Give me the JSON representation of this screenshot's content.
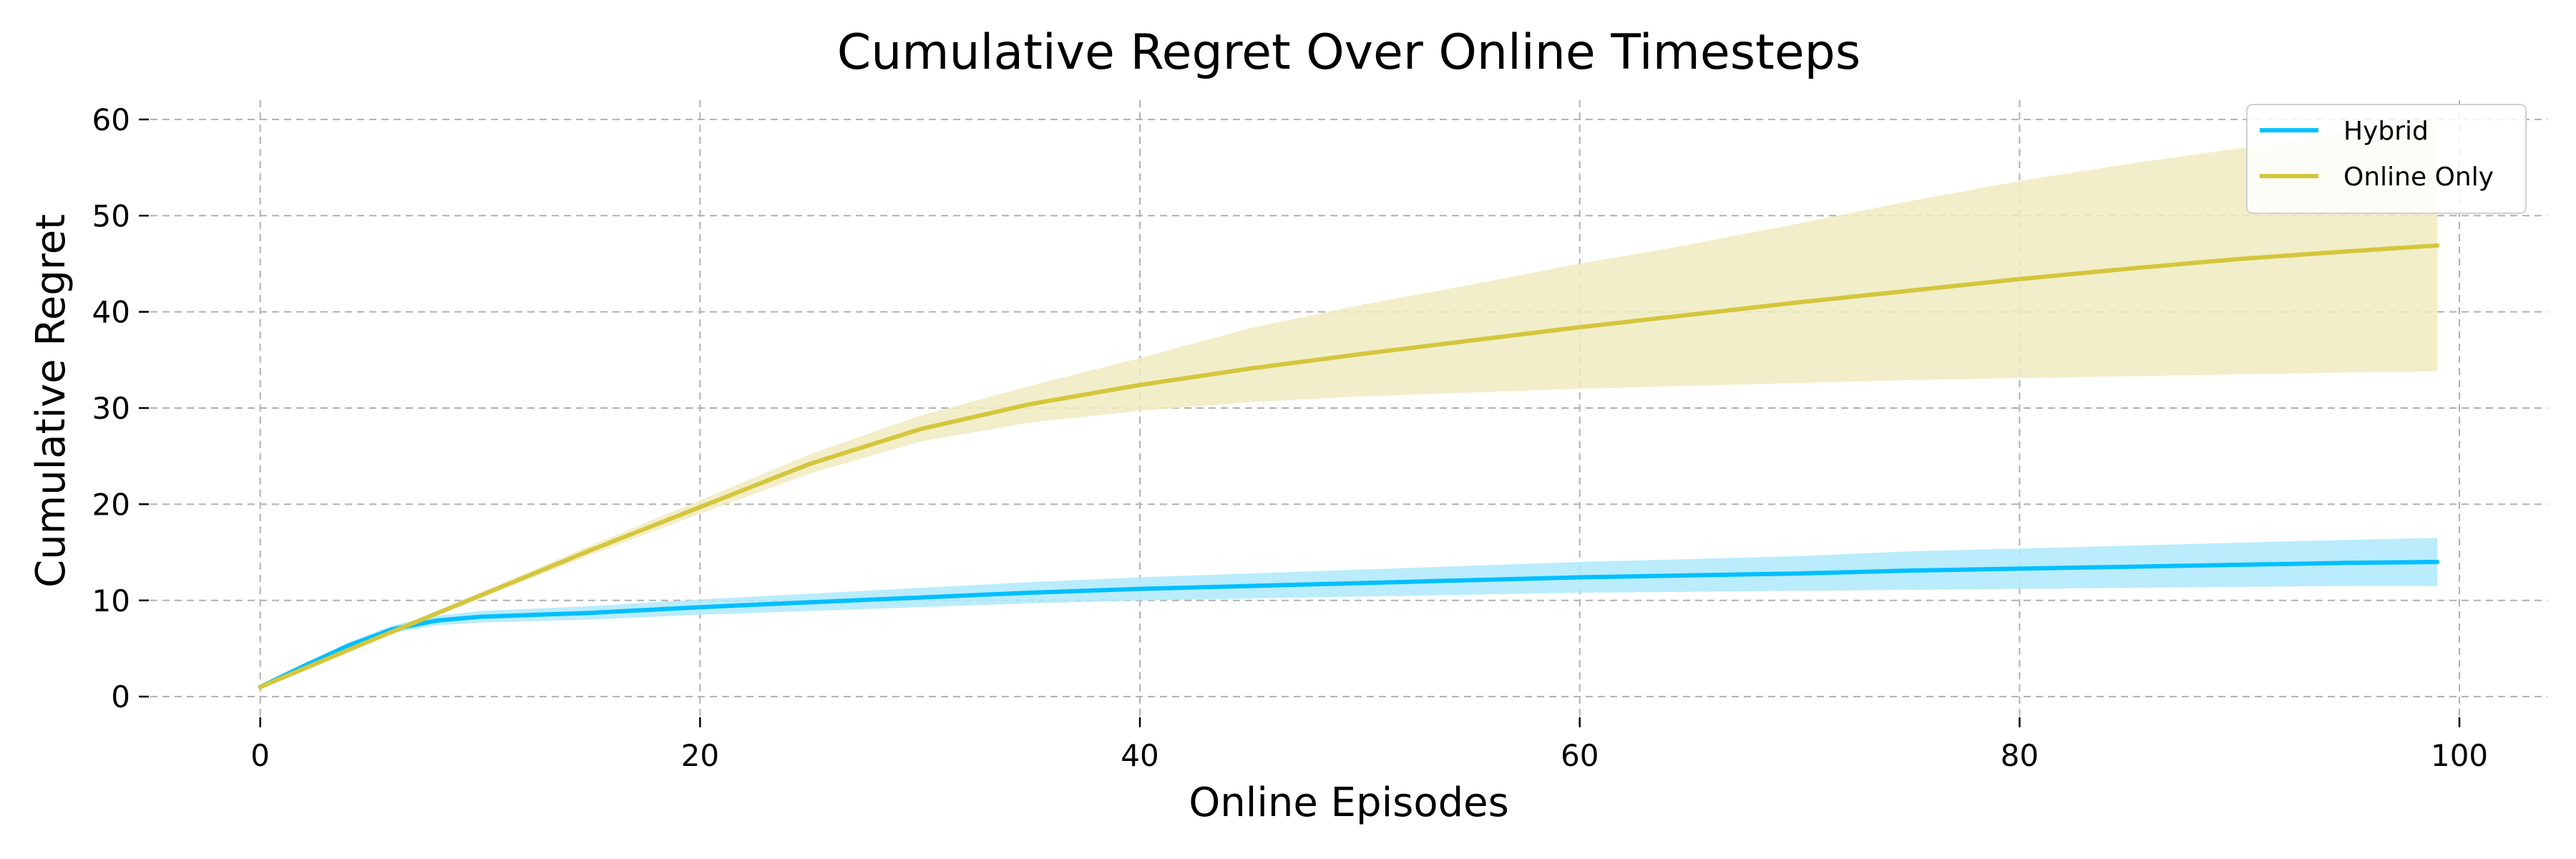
{
  "chart_data": {
    "type": "line",
    "title": "Cumulative Regret Over Online Timesteps",
    "xlabel": "Online Episodes",
    "ylabel": "Cumulative Regret",
    "xlim": [
      -5,
      104
    ],
    "ylim": [
      -2,
      62
    ],
    "xticks": [
      0,
      20,
      40,
      60,
      80,
      100
    ],
    "yticks": [
      0,
      10,
      20,
      30,
      40,
      50,
      60
    ],
    "grid": true,
    "legend_position": "top-right",
    "series": [
      {
        "name": "Hybrid",
        "color": "#00bfff",
        "band_color": "#aee9fb",
        "x": [
          0,
          2,
          4,
          6,
          8,
          10,
          15,
          20,
          25,
          30,
          35,
          40,
          45,
          50,
          55,
          60,
          65,
          70,
          75,
          80,
          85,
          90,
          95,
          99
        ],
        "y": [
          1.0,
          3.2,
          5.3,
          7.0,
          7.9,
          8.3,
          8.7,
          9.3,
          9.8,
          10.3,
          10.8,
          11.2,
          11.5,
          11.8,
          12.1,
          12.4,
          12.6,
          12.8,
          13.1,
          13.3,
          13.5,
          13.7,
          13.9,
          14.0
        ],
        "lower": [
          1.0,
          3.0,
          5.0,
          6.6,
          7.4,
          7.7,
          8.0,
          8.5,
          8.9,
          9.3,
          9.7,
          10.0,
          10.2,
          10.4,
          10.6,
          10.8,
          10.9,
          11.0,
          11.1,
          11.2,
          11.3,
          11.4,
          11.5,
          11.5
        ],
        "upper": [
          1.0,
          3.4,
          5.6,
          7.4,
          8.4,
          8.9,
          9.4,
          10.1,
          10.7,
          11.3,
          11.9,
          12.4,
          12.8,
          13.2,
          13.6,
          14.0,
          14.3,
          14.6,
          15.1,
          15.4,
          15.7,
          16.0,
          16.3,
          16.5
        ]
      },
      {
        "name": "Online Only",
        "color": "#d4c63c",
        "band_color": "#f0ebbf",
        "x": [
          0,
          5,
          10,
          15,
          20,
          25,
          30,
          35,
          40,
          45,
          50,
          55,
          60,
          65,
          70,
          75,
          80,
          85,
          90,
          95,
          99
        ],
        "y": [
          1.0,
          5.8,
          10.5,
          15.2,
          19.7,
          24.2,
          27.8,
          30.4,
          32.4,
          34.1,
          35.6,
          37.0,
          38.4,
          39.7,
          41.0,
          42.2,
          43.4,
          44.5,
          45.5,
          46.3,
          46.9
        ],
        "lower": [
          1.0,
          5.6,
          10.2,
          14.7,
          19.0,
          23.2,
          26.5,
          28.5,
          29.7,
          30.6,
          31.2,
          31.6,
          32.0,
          32.3,
          32.6,
          32.9,
          33.1,
          33.3,
          33.5,
          33.7,
          33.8
        ],
        "upper": [
          1.0,
          6.0,
          10.8,
          15.7,
          20.4,
          25.2,
          29.2,
          32.3,
          35.2,
          38.3,
          40.7,
          42.8,
          45.0,
          47.0,
          49.2,
          51.5,
          53.6,
          55.4,
          57.0,
          58.8,
          59.8
        ]
      }
    ]
  }
}
